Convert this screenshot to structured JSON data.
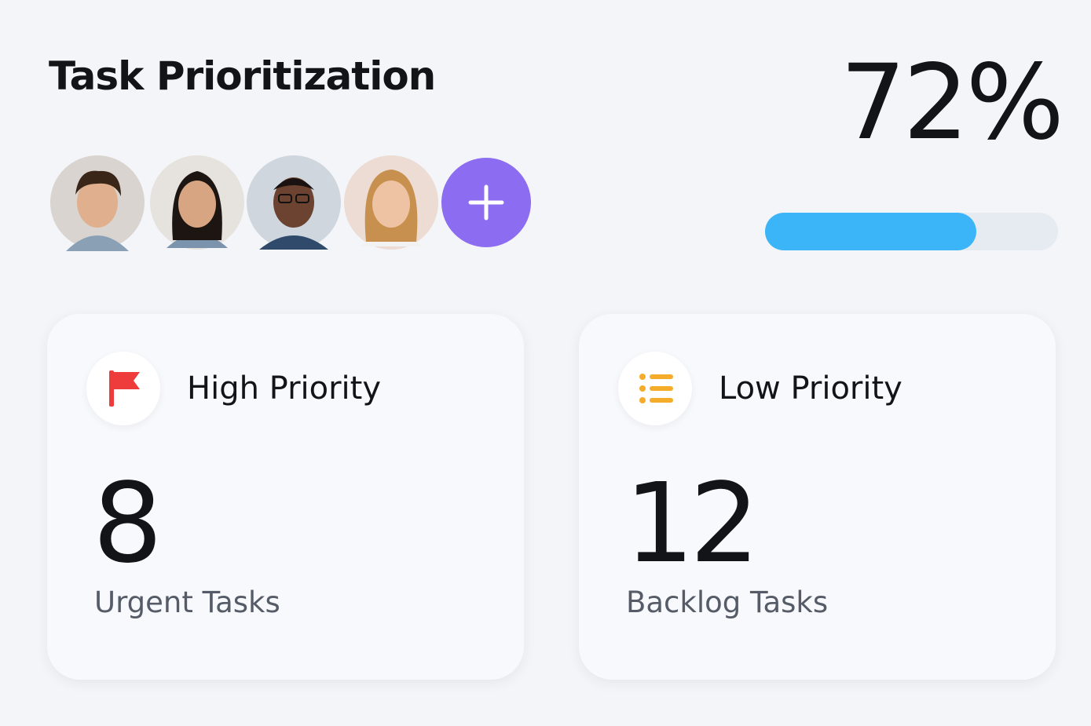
{
  "header": {
    "title": "Task Prioritization"
  },
  "progress": {
    "value": 72,
    "label": "72%",
    "color": "#3bb5f7",
    "track_color": "#e6eaf1"
  },
  "cards": [
    {
      "title": "High Priority",
      "count": "8",
      "caption": "Urgent Tasks"
    },
    {
      "title": "Low Priority",
      "count": "12",
      "caption": "Backlog Tasks"
    }
  ]
}
